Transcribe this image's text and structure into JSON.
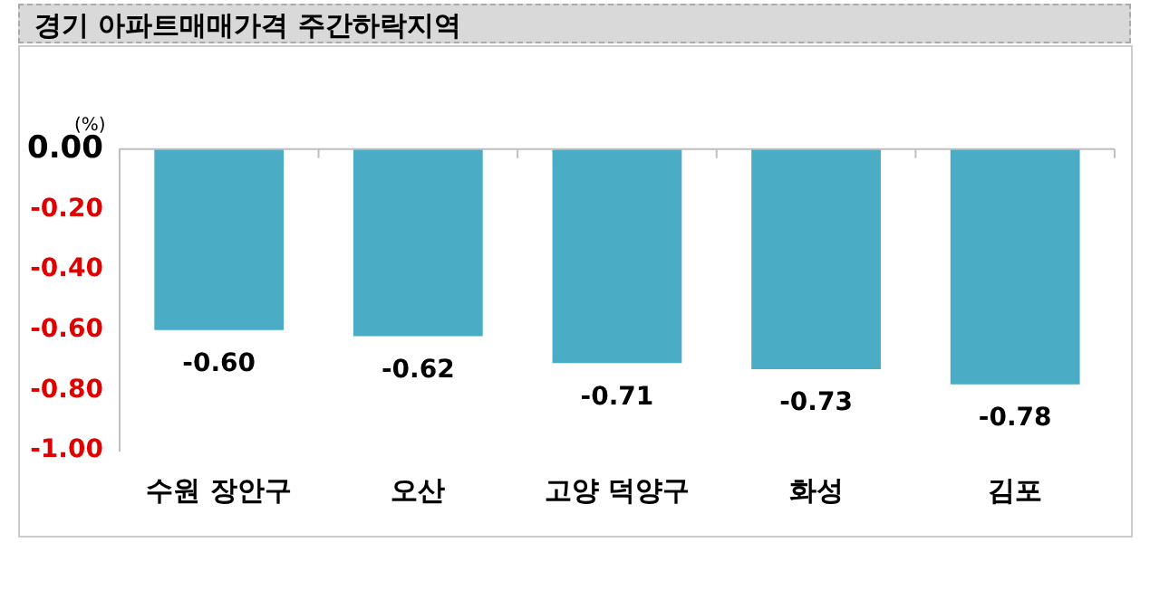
{
  "chart_data": {
    "type": "bar",
    "title": "경기 아파트매매가격 주간하락지역",
    "ylabel": "(%)",
    "categories": [
      "수원 장안구",
      "오산",
      "고양 덕양구",
      "화성",
      "김포"
    ],
    "values": [
      -0.6,
      -0.62,
      -0.71,
      -0.73,
      -0.78
    ],
    "color": "#4bacc6",
    "ylim": [
      -1.0,
      0.0
    ],
    "yticks": [
      {
        "value": 0,
        "label": "0.00"
      },
      {
        "value": -0.2,
        "label": "-0.20"
      },
      {
        "value": -0.4,
        "label": "-0.40"
      },
      {
        "value": -0.6,
        "label": "-0.60"
      },
      {
        "value": -0.8,
        "label": "-0.80"
      },
      {
        "value": -1.0,
        "label": "-1.00"
      }
    ],
    "value_labels": [
      "-0.60",
      "-0.62",
      "-0.71",
      "-0.73",
      "-0.78"
    ],
    "grid": false,
    "legend": false
  }
}
